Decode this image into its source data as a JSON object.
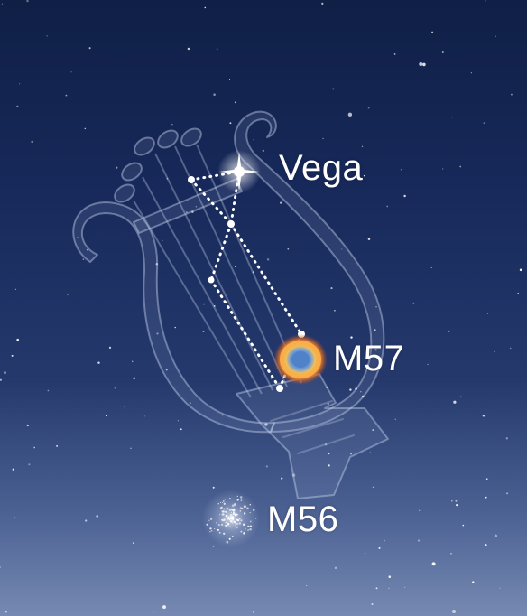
{
  "constellation": {
    "illustration": "lyre"
  },
  "labels": {
    "vega": "Vega",
    "m57": "M57",
    "m56": "M56"
  },
  "colors": {
    "sky_top": "#0f1f46",
    "sky_bottom": "#7689b2",
    "star": "#ffffff",
    "lyre_outline": "#b9c8e6",
    "nebula_ring_outer": "#f2a13a",
    "nebula_ring_inner": "#5a8fd0"
  }
}
